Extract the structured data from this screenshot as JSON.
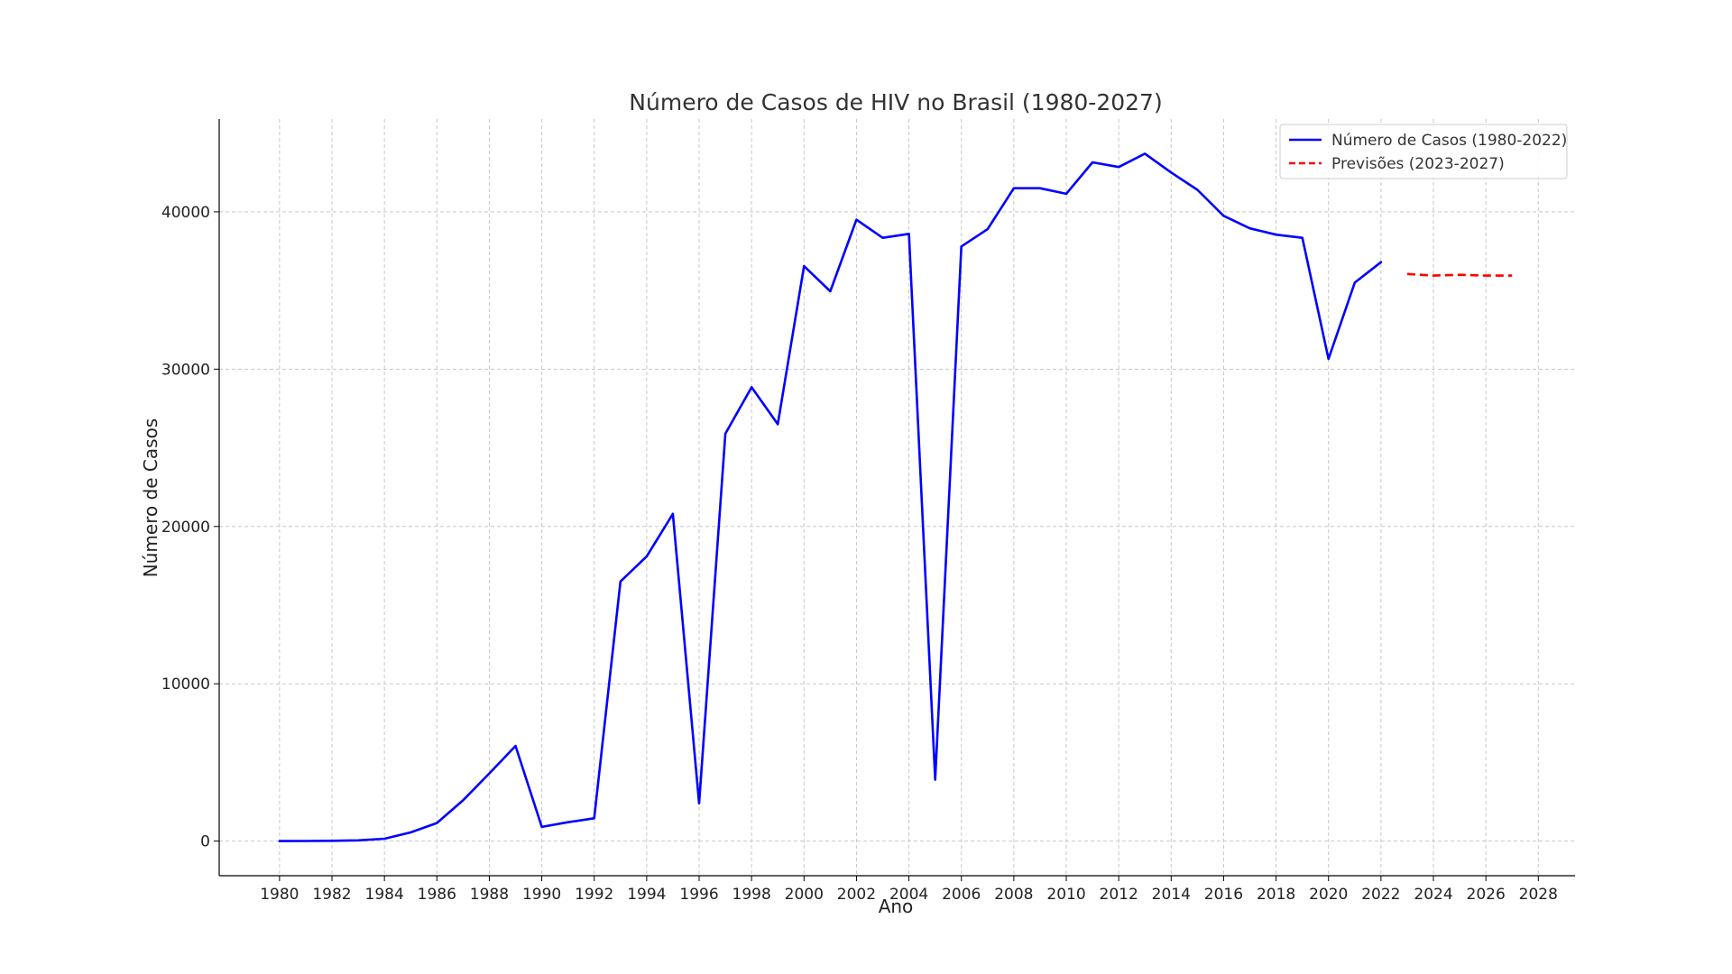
{
  "chart_data": {
    "type": "line",
    "title": "Número de Casos de HIV no Brasil (1980-2027)",
    "xlabel": "Ano",
    "ylabel": "Número de Casos",
    "xlim": [
      1977.7,
      2029.4
    ],
    "ylim": [
      -2200,
      45900
    ],
    "grid": true,
    "legend_position": "top-right",
    "x_ticks": [
      1980,
      1982,
      1984,
      1986,
      1988,
      1990,
      1992,
      1994,
      1996,
      1998,
      2000,
      2002,
      2004,
      2006,
      2008,
      2010,
      2012,
      2014,
      2016,
      2018,
      2020,
      2022,
      2024,
      2026,
      2028
    ],
    "y_ticks": [
      0,
      10000,
      20000,
      30000,
      40000
    ],
    "series": [
      {
        "name": "Número de Casos (1980-2022)",
        "color": "#0000ff",
        "style": "solid",
        "x": [
          1980,
          1981,
          1982,
          1983,
          1984,
          1985,
          1986,
          1987,
          1988,
          1989,
          1990,
          1991,
          1992,
          1993,
          1994,
          1995,
          1996,
          1997,
          1998,
          1999,
          2000,
          2001,
          2002,
          2003,
          2004,
          2005,
          2006,
          2007,
          2008,
          2009,
          2010,
          2011,
          2012,
          2013,
          2014,
          2015,
          2016,
          2017,
          2018,
          2019,
          2020,
          2021,
          2022
        ],
        "values": [
          0,
          10,
          20,
          50,
          150,
          550,
          1150,
          2600,
          4300,
          6050,
          900,
          1200,
          1450,
          16500,
          18100,
          20800,
          2400,
          25900,
          28850,
          26500,
          36550,
          34950,
          39500,
          38350,
          38600,
          3900,
          37800,
          38900,
          41500,
          41500,
          41150,
          43150,
          42850,
          43700,
          42500,
          41400,
          39750,
          38950,
          38550,
          38350,
          30650,
          35500,
          36800
        ]
      },
      {
        "name": "Previsões (2023-2027)",
        "color": "#ff0000",
        "style": "dashed",
        "x": [
          2023,
          2024,
          2025,
          2026,
          2027
        ],
        "values": [
          36050,
          35950,
          36000,
          35950,
          35950
        ]
      }
    ]
  }
}
